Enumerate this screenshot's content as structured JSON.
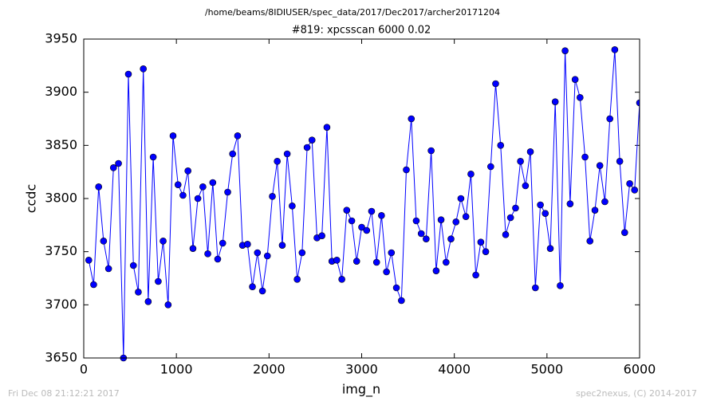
{
  "chart_data": {
    "type": "line",
    "suptitle": "/home/beams/8IDIUSER/spec_data/2017/Dec2017/archer20171204",
    "title": "#819: xpcsscan 6000 0.02",
    "xlabel": "img_n",
    "ylabel": "ccdc",
    "footer_left": "Fri Dec 08 21:12:21 2017",
    "footer_right": "spec2nexus, (C) 2014-2017",
    "xlim": [
      0,
      6000
    ],
    "xticks": [
      0,
      1000,
      2000,
      3000,
      4000,
      5000,
      6000
    ],
    "ylim": [
      3650,
      3950
    ],
    "yticks": [
      3650,
      3700,
      3750,
      3800,
      3850,
      3900,
      3950
    ],
    "x": [
      54,
      107,
      161,
      214,
      268,
      321,
      375,
      429,
      482,
      536,
      589,
      643,
      696,
      750,
      804,
      857,
      911,
      964,
      1018,
      1071,
      1125,
      1179,
      1232,
      1286,
      1339,
      1393,
      1446,
      1500,
      1554,
      1607,
      1661,
      1714,
      1768,
      1821,
      1875,
      1929,
      1982,
      2036,
      2089,
      2143,
      2196,
      2250,
      2304,
      2357,
      2411,
      2464,
      2518,
      2571,
      2625,
      2679,
      2732,
      2786,
      2839,
      2893,
      2946,
      3000,
      3054,
      3107,
      3161,
      3214,
      3268,
      3321,
      3375,
      3429,
      3482,
      3536,
      3589,
      3643,
      3696,
      3750,
      3804,
      3857,
      3911,
      3964,
      4018,
      4071,
      4125,
      4179,
      4232,
      4286,
      4339,
      4393,
      4446,
      4500,
      4554,
      4607,
      4661,
      4714,
      4768,
      4821,
      4875,
      4929,
      4982,
      5036,
      5089,
      5143,
      5196,
      5250,
      5304,
      5357,
      5411,
      5464,
      5518,
      5571,
      5625,
      5679,
      5732,
      5786,
      5839,
      5893,
      5946,
      6000
    ],
    "series": [
      {
        "color": "#0000ff",
        "values": [
          3742,
          3719,
          3811,
          3760,
          3734,
          3829,
          3833,
          3650,
          3917,
          3737,
          3712,
          3922,
          3703,
          3839,
          3722,
          3760,
          3700,
          3859,
          3813,
          3803,
          3826,
          3753,
          3800,
          3811,
          3748,
          3815,
          3743,
          3758,
          3806,
          3842,
          3859,
          3756,
          3757,
          3717,
          3749,
          3713,
          3746,
          3802,
          3835,
          3756,
          3842,
          3793,
          3724,
          3749,
          3848,
          3855,
          3763,
          3765,
          3867,
          3741,
          3742,
          3724,
          3789,
          3779,
          3741,
          3773,
          3770,
          3788,
          3740,
          3784,
          3731,
          3749,
          3716,
          3704,
          3827,
          3875,
          3779,
          3767,
          3762,
          3845,
          3732,
          3780,
          3740,
          3762,
          3778,
          3800,
          3783,
          3823,
          3728,
          3759,
          3750,
          3830,
          3908,
          3850,
          3766,
          3782,
          3791,
          3835,
          3812,
          3844,
          3716,
          3794,
          3786,
          3753,
          3891,
          3718,
          3939,
          3795,
          3912,
          3895,
          3839,
          3760,
          3789,
          3831,
          3797,
          3875,
          3940,
          3835,
          3768,
          3814,
          3808,
          3890
        ]
      }
    ]
  }
}
